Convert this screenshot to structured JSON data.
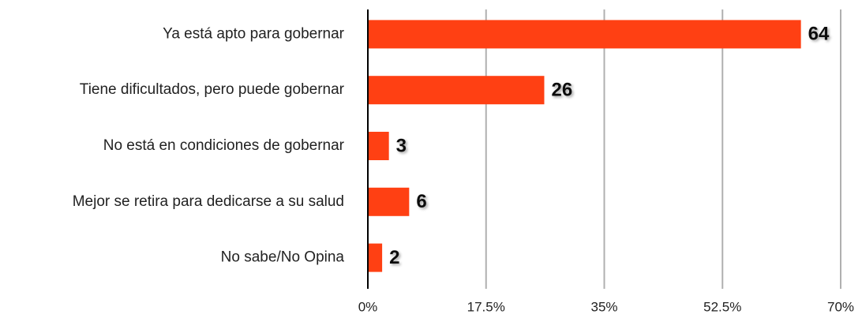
{
  "chart_data": {
    "type": "bar",
    "orientation": "horizontal",
    "categories": [
      "Ya está apto para gobernar",
      "Tiene dificultados, pero puede gobernar",
      "No está en condiciones de gobernar",
      "Mejor se retira para dedicarse a su salud",
      "No sabe/No Opina"
    ],
    "values": [
      64,
      26,
      3,
      6,
      2
    ],
    "color": "#ff4013",
    "xlim": [
      0,
      70
    ],
    "xticks": [
      {
        "value": 0,
        "label": "0%"
      },
      {
        "value": 17.5,
        "label": "17.5%"
      },
      {
        "value": 35,
        "label": "35%"
      },
      {
        "value": 52.5,
        "label": "52.5%"
      },
      {
        "value": 70,
        "label": "70%"
      }
    ],
    "grid": true
  }
}
